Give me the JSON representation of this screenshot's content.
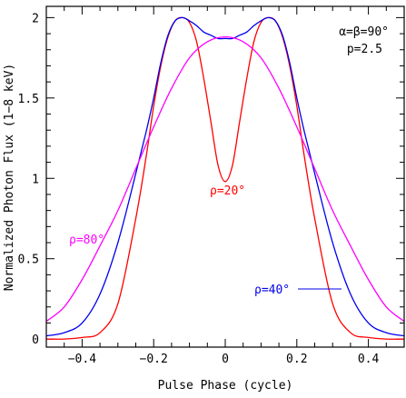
{
  "chart_data": {
    "type": "line",
    "xlabel": "Pulse Phase (cycle)",
    "ylabel": "Normalized Photon Flux (1−8 keV)",
    "xlim": [
      -0.5,
      0.5
    ],
    "ylim": [
      -0.05,
      2.07
    ],
    "x_ticks": [
      -0.4,
      -0.2,
      0,
      0.2,
      0.4
    ],
    "x_tick_labels": [
      "−0.4",
      "−0.2",
      "0",
      "0.2",
      "0.4"
    ],
    "y_ticks": [
      0,
      0.5,
      1,
      1.5,
      2
    ],
    "y_tick_labels": [
      "0",
      "0.5",
      "1",
      "1.5",
      "2"
    ],
    "grid": false,
    "annotations": {
      "alpha_beta": "α=β=90°",
      "p": "p=2.5",
      "rho20": "ρ=20°",
      "rho40": "ρ=40°",
      "rho80": "ρ=80°"
    },
    "series": [
      {
        "name": "ρ=20°",
        "color": "#ff0000",
        "x": [
          -0.5,
          -0.45,
          -0.4,
          -0.35,
          -0.3,
          -0.25,
          -0.22,
          -0.2,
          -0.18,
          -0.16,
          -0.14,
          -0.12,
          -0.1,
          -0.08,
          -0.06,
          -0.04,
          -0.02,
          0,
          0.02,
          0.04,
          0.06,
          0.08,
          0.1,
          0.12,
          0.14,
          0.16,
          0.18,
          0.2,
          0.22,
          0.25,
          0.3,
          0.35,
          0.4,
          0.45,
          0.5
        ],
        "y": [
          0.0,
          0.0,
          0.01,
          0.04,
          0.22,
          0.75,
          1.15,
          1.45,
          1.7,
          1.88,
          1.98,
          2.0,
          1.97,
          1.85,
          1.62,
          1.35,
          1.08,
          0.98,
          1.08,
          1.35,
          1.62,
          1.85,
          1.97,
          2.0,
          1.98,
          1.88,
          1.7,
          1.45,
          1.15,
          0.75,
          0.22,
          0.04,
          0.01,
          0.0,
          0.0
        ]
      },
      {
        "name": "ρ=40°",
        "color": "#0000ee",
        "x": [
          -0.5,
          -0.45,
          -0.4,
          -0.35,
          -0.3,
          -0.25,
          -0.22,
          -0.2,
          -0.18,
          -0.16,
          -0.14,
          -0.12,
          -0.1,
          -0.08,
          -0.06,
          -0.04,
          -0.02,
          0,
          0.02,
          0.04,
          0.06,
          0.08,
          0.1,
          0.12,
          0.14,
          0.16,
          0.18,
          0.2,
          0.22,
          0.25,
          0.3,
          0.35,
          0.4,
          0.45,
          0.5
        ],
        "y": [
          0.02,
          0.04,
          0.1,
          0.28,
          0.6,
          1.03,
          1.3,
          1.5,
          1.72,
          1.89,
          1.98,
          2.0,
          1.98,
          1.95,
          1.91,
          1.89,
          1.87,
          1.87,
          1.87,
          1.89,
          1.91,
          1.95,
          1.98,
          2.0,
          1.98,
          1.89,
          1.72,
          1.5,
          1.3,
          1.03,
          0.6,
          0.28,
          0.1,
          0.04,
          0.02
        ]
      },
      {
        "name": "ρ=80°",
        "color": "#ff00ff",
        "x": [
          -0.5,
          -0.45,
          -0.4,
          -0.35,
          -0.3,
          -0.25,
          -0.2,
          -0.15,
          -0.1,
          -0.05,
          0,
          0.05,
          0.1,
          0.15,
          0.2,
          0.25,
          0.3,
          0.35,
          0.4,
          0.45,
          0.5
        ],
        "y": [
          0.11,
          0.2,
          0.37,
          0.58,
          0.8,
          1.06,
          1.32,
          1.56,
          1.75,
          1.85,
          1.88,
          1.85,
          1.75,
          1.56,
          1.32,
          1.06,
          0.8,
          0.58,
          0.37,
          0.2,
          0.11
        ]
      }
    ]
  }
}
